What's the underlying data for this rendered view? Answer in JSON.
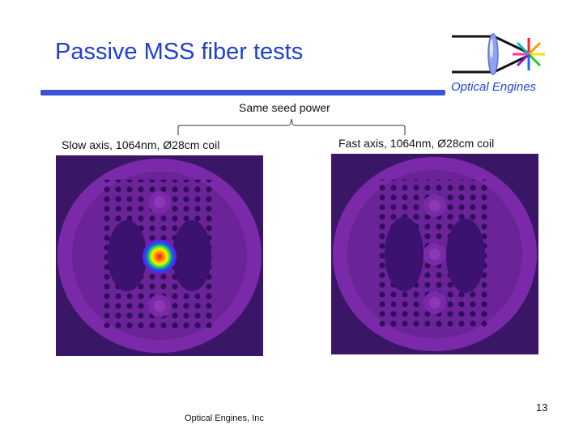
{
  "slide": {
    "title": "Passive MSS fiber tests",
    "brand": "Optical Engines",
    "annotation": "Same seed power",
    "left_caption": "Slow axis, 1064nm, Ø28cm coil",
    "right_caption": "Fast axis, 1064nm, Ø28cm coil",
    "footer": "Optical Engines, Inc",
    "page_number": "13"
  },
  "colors": {
    "title": "#1f3fd0",
    "rule": "#3a52d8",
    "background_image": "#4a1f7e"
  },
  "icons": {
    "logo": "optical-engines-lens-logo"
  }
}
